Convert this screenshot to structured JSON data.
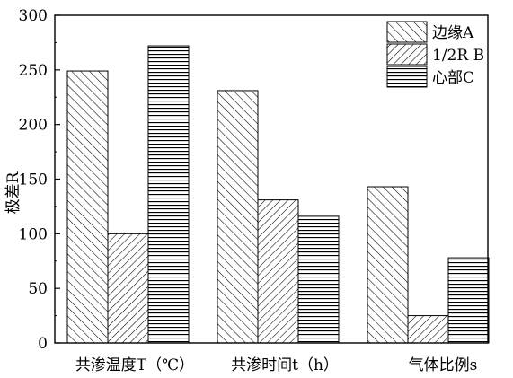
{
  "chart_data": {
    "type": "bar",
    "title": "",
    "xlabel": "",
    "ylabel": "极差R",
    "ylim": [
      0,
      300
    ],
    "yticks": [
      0,
      50,
      100,
      150,
      200,
      250,
      300
    ],
    "categories": [
      "共渗温度T（℃）",
      "共渗时间t（h）",
      "气体比例s"
    ],
    "series": [
      {
        "name": "边缘A",
        "pattern": "hatch-forward",
        "values": [
          249,
          231,
          143
        ]
      },
      {
        "name": "1/2R B",
        "pattern": "hatch-back",
        "values": [
          100,
          131,
          25
        ]
      },
      {
        "name": "心部C",
        "pattern": "hatch-horizontal",
        "values": [
          272,
          116,
          78
        ]
      }
    ],
    "legend_position": "top-right",
    "grid": false
  }
}
